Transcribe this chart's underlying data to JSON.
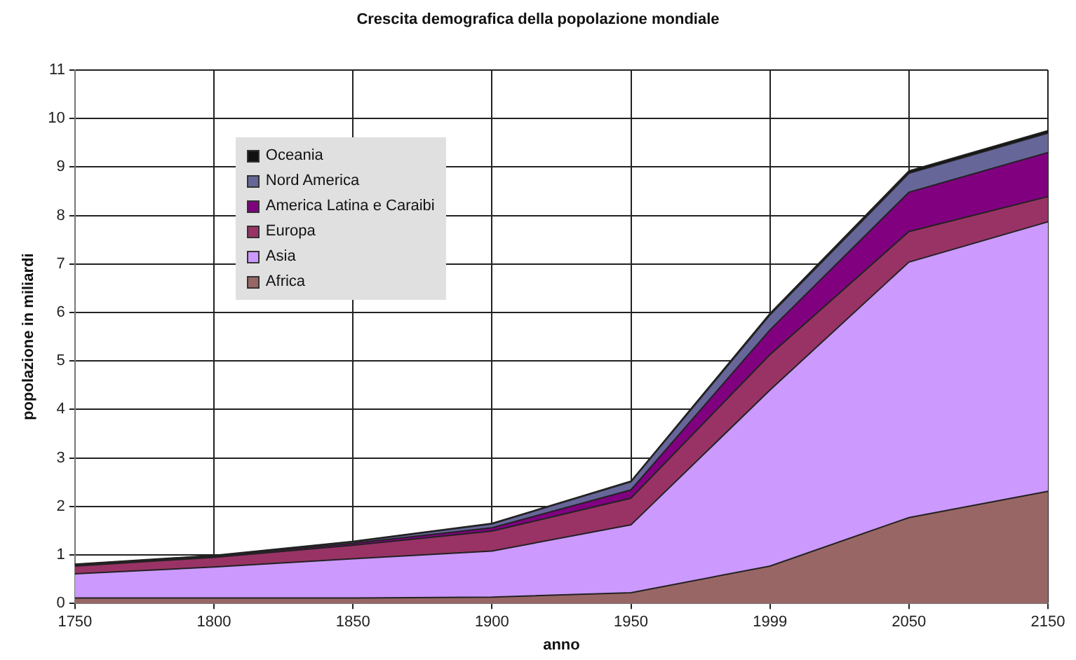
{
  "chart_data": {
    "type": "area",
    "title": "Crescita demografica della popolazione mondiale",
    "xlabel": "anno",
    "ylabel": "popolazione in miliardi",
    "categories": [
      "1750",
      "1800",
      "1850",
      "1900",
      "1950",
      "1999",
      "2050",
      "2150"
    ],
    "stacked": true,
    "series": [
      {
        "name": "Africa",
        "color": "#996666",
        "values": [
          0.11,
          0.11,
          0.11,
          0.13,
          0.22,
          0.77,
          1.77,
          2.31
        ]
      },
      {
        "name": "Asia",
        "color": "#cc99ff",
        "values": [
          0.5,
          0.64,
          0.81,
          0.95,
          1.4,
          3.63,
          5.27,
          5.56
        ]
      },
      {
        "name": "Europa",
        "color": "#993366",
        "values": [
          0.16,
          0.2,
          0.28,
          0.41,
          0.55,
          0.73,
          0.63,
          0.52
        ]
      },
      {
        "name": "America Latina e Caraibi",
        "color": "#800080",
        "values": [
          0.02,
          0.02,
          0.04,
          0.07,
          0.17,
          0.51,
          0.81,
          0.91
        ]
      },
      {
        "name": "Nord America",
        "color": "#666699",
        "values": [
          0.01,
          0.01,
          0.03,
          0.08,
          0.17,
          0.31,
          0.39,
          0.4
        ]
      },
      {
        "name": "Oceania",
        "color": "#111111",
        "values": [
          0.01,
          0.01,
          0.01,
          0.01,
          0.01,
          0.03,
          0.05,
          0.05
        ]
      }
    ],
    "ylim": [
      0,
      11
    ],
    "yticks": [
      0,
      1,
      2,
      3,
      4,
      5,
      6,
      7,
      8,
      9,
      10,
      11
    ],
    "grid": true,
    "legend": "top left"
  }
}
